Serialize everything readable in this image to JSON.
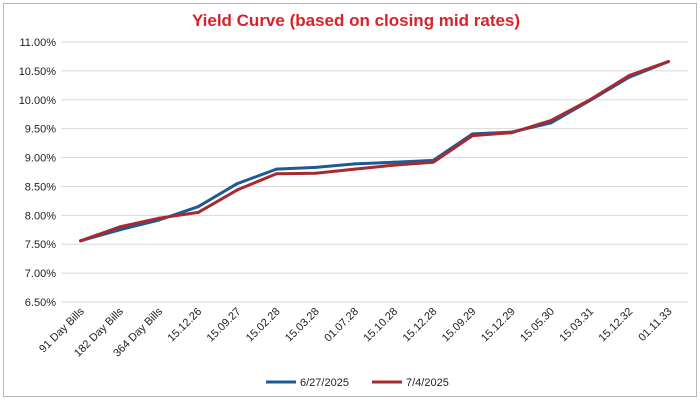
{
  "chart_data": {
    "type": "line",
    "title": "Yield Curve (based on closing mid rates)",
    "xlabel": "",
    "ylabel": "",
    "categories": [
      "91 Day Bills",
      "182 Day Bills",
      "364 Day Bills",
      "15.12.26",
      "15.09.27",
      "15.02.28",
      "15.03.28",
      "01.07.28",
      "15.10.28",
      "15.12.28",
      "15.09.29",
      "15.12.29",
      "15.05.30",
      "15.03.31",
      "15.12.32",
      "01.11.33"
    ],
    "y_ticks": [
      "11.00%",
      "10.50%",
      "10.00%",
      "9.50%",
      "9.00%",
      "8.50%",
      "8.00%",
      "7.50%",
      "7.00%",
      "6.50%"
    ],
    "ylim": [
      6.5,
      11.0
    ],
    "grid": true,
    "legend_position": "bottom",
    "series": [
      {
        "name": "6/27/2025",
        "color": "#1f5b93",
        "values": [
          7.56,
          7.75,
          7.92,
          8.15,
          8.55,
          8.8,
          8.83,
          8.89,
          8.92,
          8.95,
          9.41,
          9.44,
          9.6,
          9.99,
          10.39,
          10.66
        ]
      },
      {
        "name": "7/4/2025",
        "color": "#a72a32",
        "values": [
          7.56,
          7.8,
          7.95,
          8.05,
          8.44,
          8.72,
          8.73,
          8.8,
          8.87,
          8.92,
          9.38,
          9.43,
          9.64,
          10.0,
          10.42,
          10.66
        ]
      }
    ]
  }
}
